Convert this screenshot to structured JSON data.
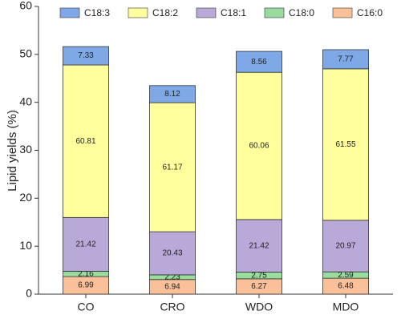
{
  "chart_data": {
    "type": "stacked-bar",
    "y_label": "Lipid yields (%)",
    "categories": [
      "CO",
      "CRO",
      "WDO",
      "MDO"
    ],
    "series": [
      {
        "name": "C16:0",
        "color": "#f9c09a",
        "values": [
          3.66,
          3.05,
          3.2,
          3.32
        ],
        "composition": [
          6.99,
          6.94,
          6.27,
          6.48
        ]
      },
      {
        "name": "C18:0",
        "color": "#98dc9e",
        "values": [
          1.13,
          0.98,
          1.41,
          1.33
        ],
        "composition": [
          2.16,
          2.23,
          2.75,
          2.59
        ]
      },
      {
        "name": "C18:1",
        "color": "#b9a9d8",
        "values": [
          11.2,
          8.99,
          10.95,
          10.76
        ],
        "composition": [
          21.42,
          20.43,
          21.42,
          20.97
        ]
      },
      {
        "name": "C18:2",
        "color": "#ffff9e",
        "values": [
          31.8,
          26.9,
          30.7,
          31.58
        ],
        "composition": [
          60.81,
          61.17,
          60.06,
          61.55
        ]
      },
      {
        "name": "C18:3",
        "color": "#7ea9e6",
        "values": [
          3.83,
          3.57,
          4.37,
          3.99
        ],
        "composition": [
          7.33,
          8.12,
          8.56,
          7.77
        ]
      }
    ],
    "legend_order": [
      4,
      3,
      2,
      1,
      0
    ],
    "ylim": [
      0,
      60
    ],
    "yticks": [
      0,
      10,
      20,
      30,
      40,
      50,
      60
    ]
  }
}
